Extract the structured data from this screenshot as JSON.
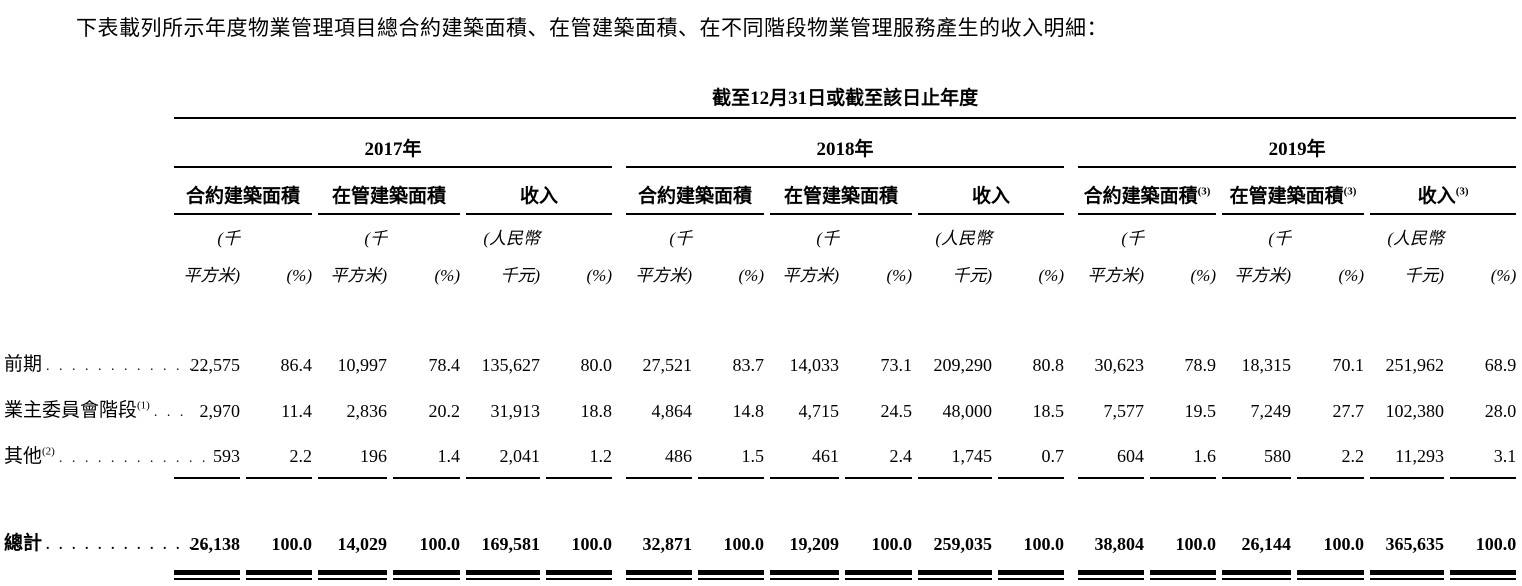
{
  "intro": "下表載列所示年度物業管理項目總合約建築面積、在管建築面積、在不同階段物業管理服務產生的收入明細：",
  "table": {
    "period_header": "截至12月31日或截至該日止年度",
    "year_groups": [
      {
        "year": "2017年",
        "columns": [
          {
            "title": "合約建築面積",
            "sup": ""
          },
          {
            "title": "在管建築面積",
            "sup": ""
          },
          {
            "title": "收入",
            "sup": ""
          }
        ]
      },
      {
        "year": "2018年",
        "columns": [
          {
            "title": "合約建築面積",
            "sup": ""
          },
          {
            "title": "在管建築面積",
            "sup": ""
          },
          {
            "title": "收入",
            "sup": ""
          }
        ]
      },
      {
        "year": "2019年",
        "columns": [
          {
            "title": "合約建築面積",
            "sup": "(3)"
          },
          {
            "title": "在管建築面積",
            "sup": "(3)"
          },
          {
            "title": "收入",
            "sup": "(3)"
          }
        ]
      }
    ],
    "sub": [
      {
        "l1": "(千",
        "l2": "平方米)"
      },
      {
        "l1": "",
        "l2": "(%)"
      },
      {
        "l1": "(千",
        "l2": "平方米)"
      },
      {
        "l1": "",
        "l2": "(%)"
      },
      {
        "l1": "(人民幣",
        "l2": "千元)"
      },
      {
        "l1": "",
        "l2": "(%)"
      }
    ],
    "rows": [
      {
        "label": "前期",
        "sup": "",
        "leader": ". . . . . . . . . . . . .",
        "values": [
          "22,575",
          "86.4",
          "10,997",
          "78.4",
          "135,627",
          "80.0",
          "27,521",
          "83.7",
          "14,033",
          "73.1",
          "209,290",
          "80.8",
          "30,623",
          "78.9",
          "18,315",
          "70.1",
          "251,962",
          "68.9"
        ]
      },
      {
        "label": "業主委員會階段",
        "sup": "(1)",
        "leader": ". . .",
        "values": [
          "2,970",
          "11.4",
          "2,836",
          "20.2",
          "31,913",
          "18.8",
          "4,864",
          "14.8",
          "4,715",
          "24.5",
          "48,000",
          "18.5",
          "7,577",
          "19.5",
          "7,249",
          "27.7",
          "102,380",
          "28.0"
        ]
      },
      {
        "label": "其他",
        "sup": "(2)",
        "leader": ". . . . . . . . . . . .",
        "values": [
          "593",
          "2.2",
          "196",
          "1.4",
          "2,041",
          "1.2",
          "486",
          "1.5",
          "461",
          "2.4",
          "1,745",
          "0.7",
          "604",
          "1.6",
          "580",
          "2.2",
          "11,293",
          "3.1"
        ]
      }
    ],
    "total_row": {
      "label": "總計",
      "sup": "",
      "leader": ". . . . . . . . . . . . .",
      "values": [
        "26,138",
        "100.0",
        "14,029",
        "100.0",
        "169,581",
        "100.0",
        "32,871",
        "100.0",
        "19,209",
        "100.0",
        "259,035",
        "100.0",
        "38,804",
        "100.0",
        "26,144",
        "100.0",
        "365,635",
        "100.0"
      ]
    }
  }
}
